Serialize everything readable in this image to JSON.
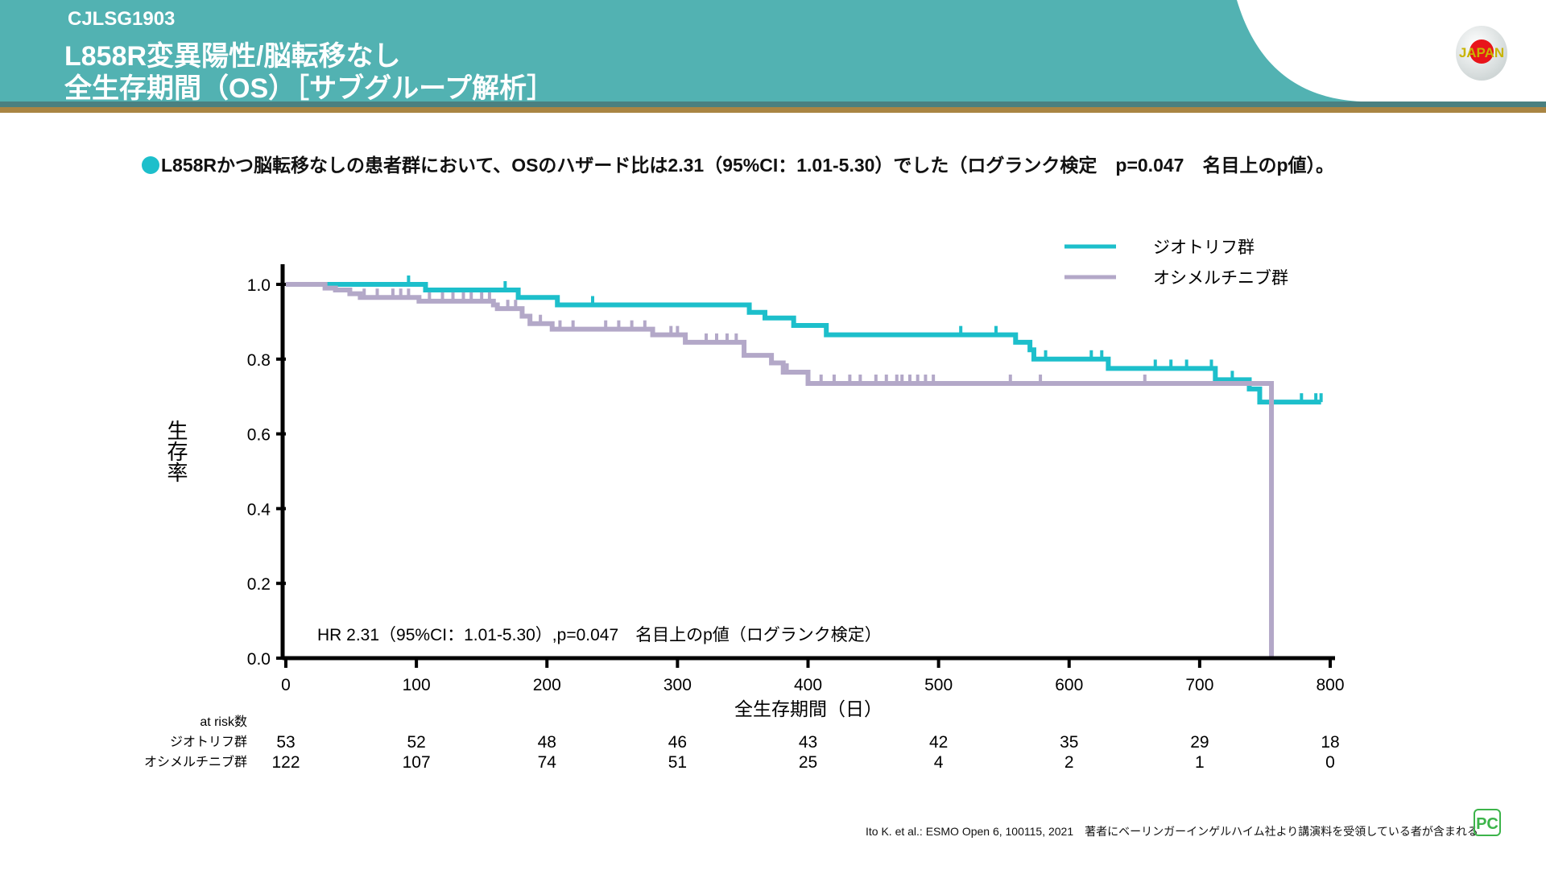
{
  "header": {
    "study_code": "CJLSG1903",
    "title_line1": "L858R変異陽性/脳転移なし",
    "title_line2": "全生存期間（OS）［サブグループ解析］",
    "logo_text": "JAPAN"
  },
  "subtitle": "L858Rかつ脳転移なしの患者群において、OSのハザード比は2.31（95%CI：1.01-5.30）でした（ログランク検定　p=0.047　名目上のp値）。",
  "colors": {
    "header": "#52b2b2",
    "afatinib": "#1dbfcb",
    "osimertinib": "#b3a8c8",
    "accent_band": "#a98543"
  },
  "chart_data": {
    "type": "line",
    "subtype": "kaplan-meier",
    "xlabel": "全生存期間（日）",
    "ylabel": "生存率",
    "xlim": [
      0,
      800
    ],
    "ylim": [
      0,
      1.0
    ],
    "xticks": [
      0,
      100,
      200,
      300,
      400,
      500,
      600,
      700,
      800
    ],
    "yticks": [
      "0.0",
      "0.2",
      "0.4",
      "0.6",
      "0.8",
      "1.0"
    ],
    "grid": false,
    "legend_position": "top-right",
    "annotation": "HR 2.31（95%CI：1.01-5.30）,p=0.047　名目上のp値（ログランク検定）",
    "series": [
      {
        "name": "ジオトリフ群",
        "color": "#1dbfcb",
        "steps": [
          [
            0,
            1.0
          ],
          [
            107,
            0.985
          ],
          [
            178,
            0.965
          ],
          [
            208,
            0.945
          ],
          [
            355,
            0.925
          ],
          [
            367,
            0.91
          ],
          [
            389,
            0.89
          ],
          [
            414,
            0.865
          ],
          [
            559,
            0.845
          ],
          [
            570,
            0.825
          ],
          [
            573,
            0.8
          ],
          [
            630,
            0.775
          ],
          [
            712,
            0.745
          ],
          [
            738,
            0.72
          ],
          [
            746,
            0.685
          ],
          [
            793,
            0.685
          ]
        ],
        "censored": [
          94,
          168,
          235,
          517,
          544,
          582,
          617,
          625,
          666,
          678,
          690,
          709,
          725,
          778,
          789,
          793
        ]
      },
      {
        "name": "オシメルチニブ群",
        "color": "#b3a8c8",
        "steps": [
          [
            0,
            1.0
          ],
          [
            30,
            0.99
          ],
          [
            38,
            0.985
          ],
          [
            49,
            0.975
          ],
          [
            57,
            0.965
          ],
          [
            102,
            0.955
          ],
          [
            159,
            0.945
          ],
          [
            162,
            0.935
          ],
          [
            181,
            0.915
          ],
          [
            187,
            0.895
          ],
          [
            204,
            0.88
          ],
          [
            281,
            0.865
          ],
          [
            306,
            0.845
          ],
          [
            351,
            0.81
          ],
          [
            372,
            0.79
          ],
          [
            381,
            0.765
          ],
          [
            400,
            0.735
          ],
          [
            755,
            0.0
          ]
        ],
        "censored": [
          60,
          70,
          82,
          88,
          94,
          110,
          120,
          128,
          136,
          142,
          150,
          156,
          170,
          176,
          195,
          210,
          220,
          245,
          255,
          265,
          275,
          295,
          300,
          322,
          330,
          338,
          345,
          384,
          410,
          420,
          432,
          440,
          452,
          460,
          468,
          472,
          478,
          484,
          490,
          496,
          555,
          578,
          658
        ]
      }
    ],
    "at_risk": {
      "header": "at risk数",
      "times": [
        0,
        100,
        200,
        300,
        400,
        500,
        600,
        700,
        800
      ],
      "rows": [
        {
          "label": "ジオトリフ群",
          "values": [
            "53",
            "52",
            "48",
            "46",
            "43",
            "42",
            "35",
            "29",
            "18"
          ]
        },
        {
          "label": "オシメルチニブ群",
          "values": [
            "122",
            "107",
            "74",
            "51",
            "25",
            "4",
            "2",
            "1",
            "0"
          ]
        }
      ]
    }
  },
  "footer": {
    "citation": "Ito K. et al.: ESMO Open  6, 100115, 2021　著者にベーリンガーインゲルハイム社より講演料を受領している者が含まれる",
    "logo_text": "PC"
  }
}
